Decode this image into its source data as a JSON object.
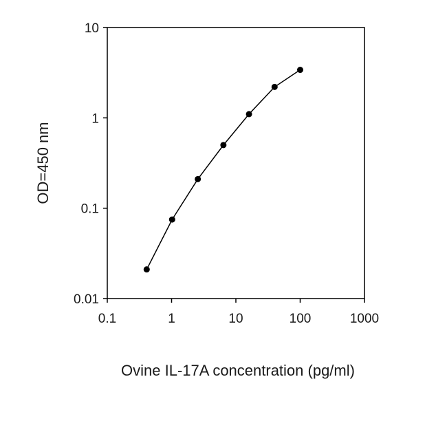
{
  "chart_data": {
    "type": "line",
    "title": "",
    "xlabel": "Ovine IL-17A concentration (pg/ml)",
    "ylabel": "OD=450 nm",
    "xscale": "log",
    "yscale": "log",
    "xlim": [
      0.1,
      1000
    ],
    "ylim": [
      0.01,
      10
    ],
    "xticks": [
      0.1,
      1,
      10,
      100,
      1000
    ],
    "xtick_labels": [
      "0.1",
      "1",
      "10",
      "100",
      "1000"
    ],
    "yticks": [
      0.01,
      0.1,
      1,
      10
    ],
    "ytick_labels": [
      "0.01",
      "0.1",
      "1",
      "10"
    ],
    "grid": false,
    "legend": "none",
    "series": [
      {
        "x": [
          0.41,
          1.02,
          2.56,
          6.4,
          16,
          40,
          100
        ],
        "y": [
          0.021,
          0.075,
          0.21,
          0.5,
          1.1,
          2.2,
          3.4
        ]
      }
    ],
    "colors": {
      "line": "#000000",
      "marker": "#000000",
      "axis": "#000000"
    }
  }
}
